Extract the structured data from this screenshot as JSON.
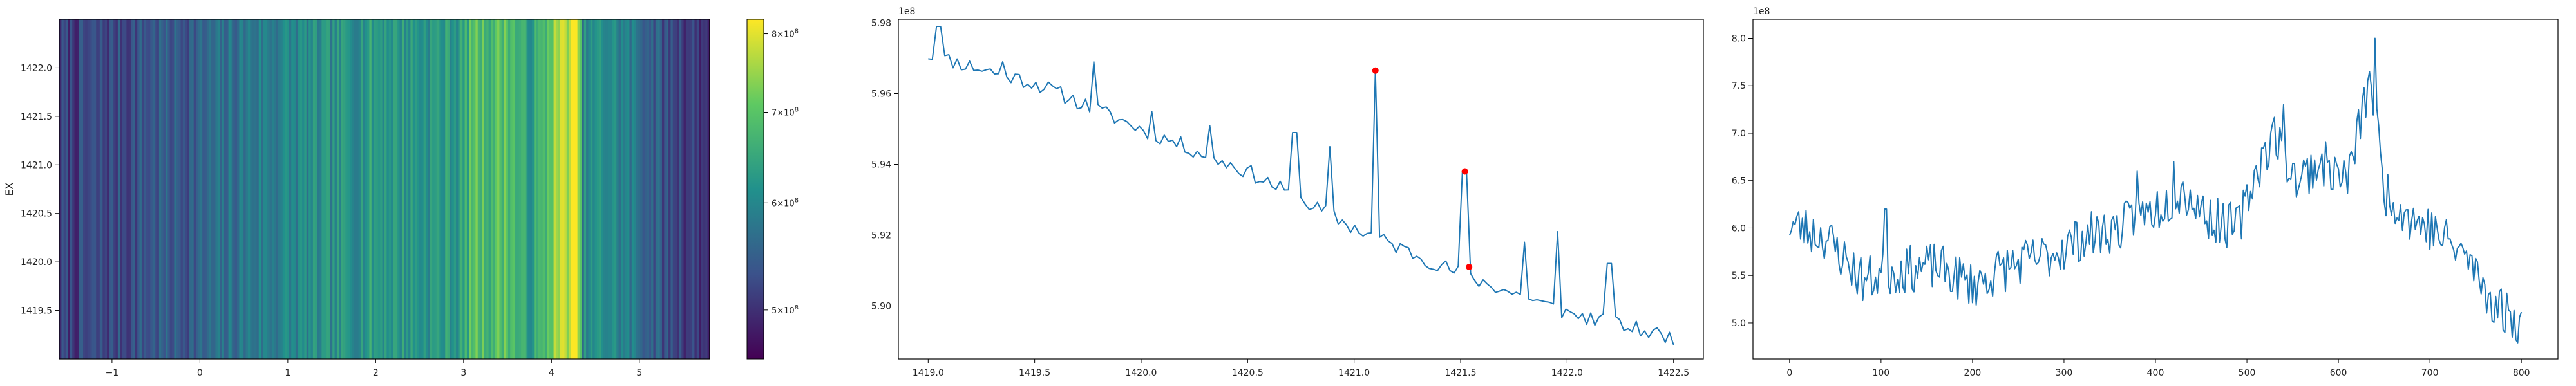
{
  "chart_data": [
    {
      "type": "heatmap",
      "colormap": "viridis",
      "ylabel": "EX",
      "x_ticks": [
        "−1",
        "0",
        "1",
        "2",
        "3",
        "4",
        "5"
      ],
      "x_tick_values": [
        -1,
        0,
        1,
        2,
        3,
        4,
        5
      ],
      "xlim": [
        -1.6,
        5.8
      ],
      "y_ticks": [
        "1419.5",
        "1420.0",
        "1420.5",
        "1421.0",
        "1421.5",
        "1422.0"
      ],
      "y_tick_values": [
        1419.5,
        1420.0,
        1420.5,
        1421.0,
        1421.5,
        1422.0
      ],
      "ylim": [
        1419.0,
        1422.5
      ],
      "colorbar": {
        "log": true,
        "range": [
          460000000,
          820000000
        ],
        "ticks": [
          {
            "base": "5",
            "exp": "8",
            "value": 500000000
          },
          {
            "base": "6",
            "exp": "8",
            "value": 600000000
          },
          {
            "base": "7",
            "exp": "8",
            "value": 700000000
          },
          {
            "base": "8",
            "exp": "8",
            "value": 800000000
          }
        ],
        "times": "×10"
      },
      "column_profile": [
        [
          -1.6,
          0.18
        ],
        [
          -1.0,
          0.22
        ],
        [
          -0.5,
          0.28
        ],
        [
          0.0,
          0.3
        ],
        [
          0.5,
          0.4
        ],
        [
          1.0,
          0.45
        ],
        [
          1.5,
          0.48
        ],
        [
          2.0,
          0.55
        ],
        [
          2.5,
          0.52
        ],
        [
          3.0,
          0.55
        ],
        [
          3.1,
          0.72
        ],
        [
          3.3,
          0.68
        ],
        [
          3.5,
          0.74
        ],
        [
          3.7,
          0.55
        ],
        [
          3.9,
          0.62
        ],
        [
          4.0,
          0.8
        ],
        [
          4.2,
          0.92
        ],
        [
          4.3,
          0.95
        ],
        [
          4.35,
          0.45
        ],
        [
          4.6,
          0.5
        ],
        [
          5.0,
          0.38
        ],
        [
          5.3,
          0.25
        ],
        [
          5.8,
          0.15
        ]
      ]
    },
    {
      "type": "line",
      "color": "#1f77b4",
      "marker_color": "#ff0000",
      "offset_label": "1e8",
      "x_ticks": [
        "1419.0",
        "1419.5",
        "1420.0",
        "1420.5",
        "1421.0",
        "1421.5",
        "1422.0",
        "1422.5"
      ],
      "x_tick_values": [
        1419.0,
        1419.5,
        1420.0,
        1420.5,
        1421.0,
        1421.5,
        1422.0,
        1422.5
      ],
      "xlim": [
        1418.86,
        1422.64
      ],
      "y_ticks": [
        "5.90",
        "5.92",
        "5.94",
        "5.96",
        "5.98"
      ],
      "y_tick_values": [
        5.9,
        5.92,
        5.94,
        5.96,
        5.98
      ],
      "ylim": [
        5.885,
        5.981
      ],
      "trend": [
        [
          1419.0,
          5.971
        ],
        [
          1419.5,
          5.963
        ],
        [
          1420.0,
          5.95
        ],
        [
          1420.5,
          5.938
        ],
        [
          1421.0,
          5.922
        ],
        [
          1421.5,
          5.909
        ],
        [
          1422.0,
          5.898
        ],
        [
          1422.5,
          5.891
        ]
      ],
      "spikes": [
        [
          1419.05,
          5.979
        ],
        [
          1419.35,
          5.969
        ],
        [
          1419.78,
          5.969
        ],
        [
          1420.05,
          5.955
        ],
        [
          1420.32,
          5.951
        ],
        [
          1420.72,
          5.949
        ],
        [
          1420.88,
          5.945
        ],
        [
          1421.1,
          5.9665
        ],
        [
          1421.52,
          5.938
        ],
        [
          1421.8,
          5.918
        ],
        [
          1421.95,
          5.921
        ],
        [
          1422.2,
          5.912
        ]
      ],
      "series": [
        {
          "points": [
            [
              1421.1,
              5.9665
            ],
            [
              1421.52,
              5.938
            ],
            [
              1421.54,
              5.911
            ]
          ]
        }
      ]
    },
    {
      "type": "line",
      "color": "#1f77b4",
      "offset_label": "1e8",
      "x_ticks": [
        "0",
        "100",
        "200",
        "300",
        "400",
        "500",
        "600",
        "700",
        "800"
      ],
      "x_tick_values": [
        0,
        100,
        200,
        300,
        400,
        500,
        600,
        700,
        800
      ],
      "xlim": [
        -40,
        840
      ],
      "y_ticks": [
        "5.0",
        "5.5",
        "6.0",
        "6.5",
        "7.0",
        "7.5",
        "8.0"
      ],
      "y_tick_values": [
        5.0,
        5.5,
        6.0,
        6.5,
        7.0,
        7.5,
        8.0
      ],
      "ylim": [
        4.62,
        8.2
      ],
      "trend": [
        [
          0,
          6.05
        ],
        [
          40,
          5.9
        ],
        [
          80,
          5.45
        ],
        [
          120,
          5.55
        ],
        [
          160,
          5.6
        ],
        [
          200,
          5.4
        ],
        [
          240,
          5.6
        ],
        [
          280,
          5.7
        ],
        [
          320,
          5.9
        ],
        [
          360,
          6.0
        ],
        [
          400,
          6.2
        ],
        [
          430,
          6.4
        ],
        [
          460,
          6.1
        ],
        [
          490,
          6.0
        ],
        [
          510,
          6.6
        ],
        [
          530,
          7.0
        ],
        [
          555,
          6.5
        ],
        [
          580,
          6.7
        ],
        [
          610,
          6.5
        ],
        [
          635,
          7.6
        ],
        [
          650,
          6.4
        ],
        [
          680,
          6.1
        ],
        [
          700,
          6.0
        ],
        [
          740,
          5.7
        ],
        [
          770,
          5.2
        ],
        [
          800,
          5.0
        ]
      ],
      "spikes": [
        [
          640,
          8.0
        ],
        [
          540,
          7.3
        ],
        [
          420,
          6.7
        ],
        [
          380,
          6.6
        ],
        [
          105,
          6.2
        ],
        [
          790,
          4.85
        ]
      ]
    }
  ]
}
